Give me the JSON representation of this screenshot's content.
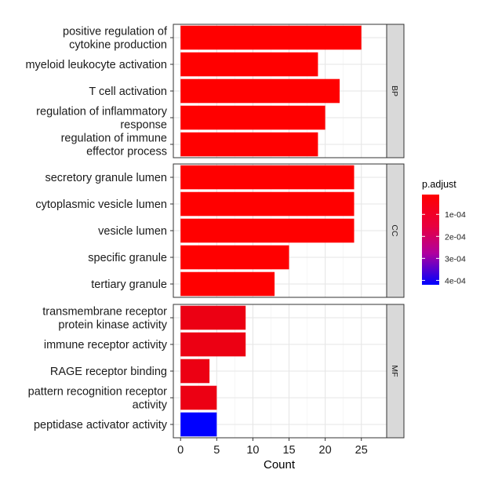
{
  "chart_data": {
    "type": "bar",
    "orientation": "horizontal",
    "xlabel": "Count",
    "xlim": [
      -1.0,
      28.5
    ],
    "xticks": [
      0,
      5,
      10,
      15,
      20,
      25
    ],
    "grid": true,
    "legend_position": "right",
    "color_scale": {
      "title": "p.adjust",
      "low_color": "#FF0000",
      "high_color": "#0000FF",
      "domain": [
        1e-05,
        0.00042
      ],
      "ticks": [
        {
          "value": 0.0001,
          "label": "1e-04"
        },
        {
          "value": 0.0002,
          "label": "2e-04"
        },
        {
          "value": 0.0003,
          "label": "3e-04"
        },
        {
          "value": 0.0004,
          "label": "4e-04"
        }
      ]
    },
    "facets": [
      {
        "name": "BP",
        "categories": [
          {
            "label": [
              "positive regulation of",
              "cytokine production"
            ],
            "value": 25,
            "p_adjust": 1e-05
          },
          {
            "label": [
              "myeloid leukocyte activation"
            ],
            "value": 19,
            "p_adjust": 1e-05
          },
          {
            "label": [
              "T cell activation"
            ],
            "value": 22,
            "p_adjust": 1e-05
          },
          {
            "label": [
              "regulation of inflammatory",
              "response"
            ],
            "value": 20,
            "p_adjust": 1e-05
          },
          {
            "label": [
              "regulation of immune",
              "effector process"
            ],
            "value": 19,
            "p_adjust": 1e-05
          }
        ]
      },
      {
        "name": "CC",
        "categories": [
          {
            "label": [
              "secretory granule lumen"
            ],
            "value": 24,
            "p_adjust": 1e-05
          },
          {
            "label": [
              "cytoplasmic vesicle lumen"
            ],
            "value": 24,
            "p_adjust": 1e-05
          },
          {
            "label": [
              "vesicle lumen"
            ],
            "value": 24,
            "p_adjust": 1e-05
          },
          {
            "label": [
              "specific granule"
            ],
            "value": 15,
            "p_adjust": 1e-05
          },
          {
            "label": [
              "tertiary granule"
            ],
            "value": 13,
            "p_adjust": 1e-05
          }
        ]
      },
      {
        "name": "MF",
        "categories": [
          {
            "label": [
              "transmembrane receptor",
              "protein kinase activity"
            ],
            "value": 9,
            "p_adjust": 4e-05
          },
          {
            "label": [
              "immune receptor activity"
            ],
            "value": 9,
            "p_adjust": 4e-05
          },
          {
            "label": [
              "RAGE receptor binding"
            ],
            "value": 4,
            "p_adjust": 4e-05
          },
          {
            "label": [
              "pattern recognition receptor",
              "activity"
            ],
            "value": 5,
            "p_adjust": 4e-05
          },
          {
            "label": [
              "peptidase activator activity"
            ],
            "value": 5,
            "p_adjust": 0.00042
          }
        ]
      }
    ]
  }
}
